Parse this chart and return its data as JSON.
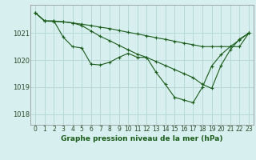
{
  "title": "Graphe pression niveau de la mer (hPa)",
  "background_color": "#d8efef",
  "plot_bg_color": "#d8efef",
  "grid_color": "#b8d8d8",
  "line_color": "#1a5c1a",
  "marker_color": "#1a5c1a",
  "xlim": [
    -0.5,
    23.5
  ],
  "ylim": [
    1017.6,
    1022.05
  ],
  "yticks": [
    1018,
    1019,
    1020,
    1021
  ],
  "xticks": [
    0,
    1,
    2,
    3,
    4,
    5,
    6,
    7,
    8,
    9,
    10,
    11,
    12,
    13,
    14,
    15,
    16,
    17,
    18,
    19,
    20,
    21,
    22,
    23
  ],
  "xlabel_fontsize": 6.5,
  "tick_fontsize": 5.5,
  "series1": [
    1021.75,
    1021.45,
    1021.45,
    1020.85,
    1020.5,
    1020.45,
    1019.85,
    1019.82,
    1019.92,
    1020.1,
    1020.25,
    1020.1,
    1020.1,
    1019.55,
    1019.1,
    1018.62,
    1018.52,
    1018.42,
    1019.0,
    1019.78,
    1020.2,
    1020.5,
    1020.75,
    1021.0
  ],
  "series2": [
    1021.75,
    1021.45,
    1021.43,
    1021.42,
    1021.38,
    1021.33,
    1021.28,
    1021.22,
    1021.17,
    1021.1,
    1021.03,
    1020.97,
    1020.9,
    1020.83,
    1020.77,
    1020.7,
    1020.63,
    1020.57,
    1020.5,
    1020.5,
    1020.5,
    1020.5,
    1020.5,
    1021.0
  ],
  "series3": [
    1021.75,
    1021.45,
    1021.45,
    1021.42,
    1021.38,
    1021.28,
    1021.08,
    1020.88,
    1020.72,
    1020.55,
    1020.38,
    1020.22,
    1020.1,
    1019.95,
    1019.8,
    1019.65,
    1019.5,
    1019.35,
    1019.1,
    1018.95,
    1019.8,
    1020.38,
    1020.78,
    1021.0
  ]
}
